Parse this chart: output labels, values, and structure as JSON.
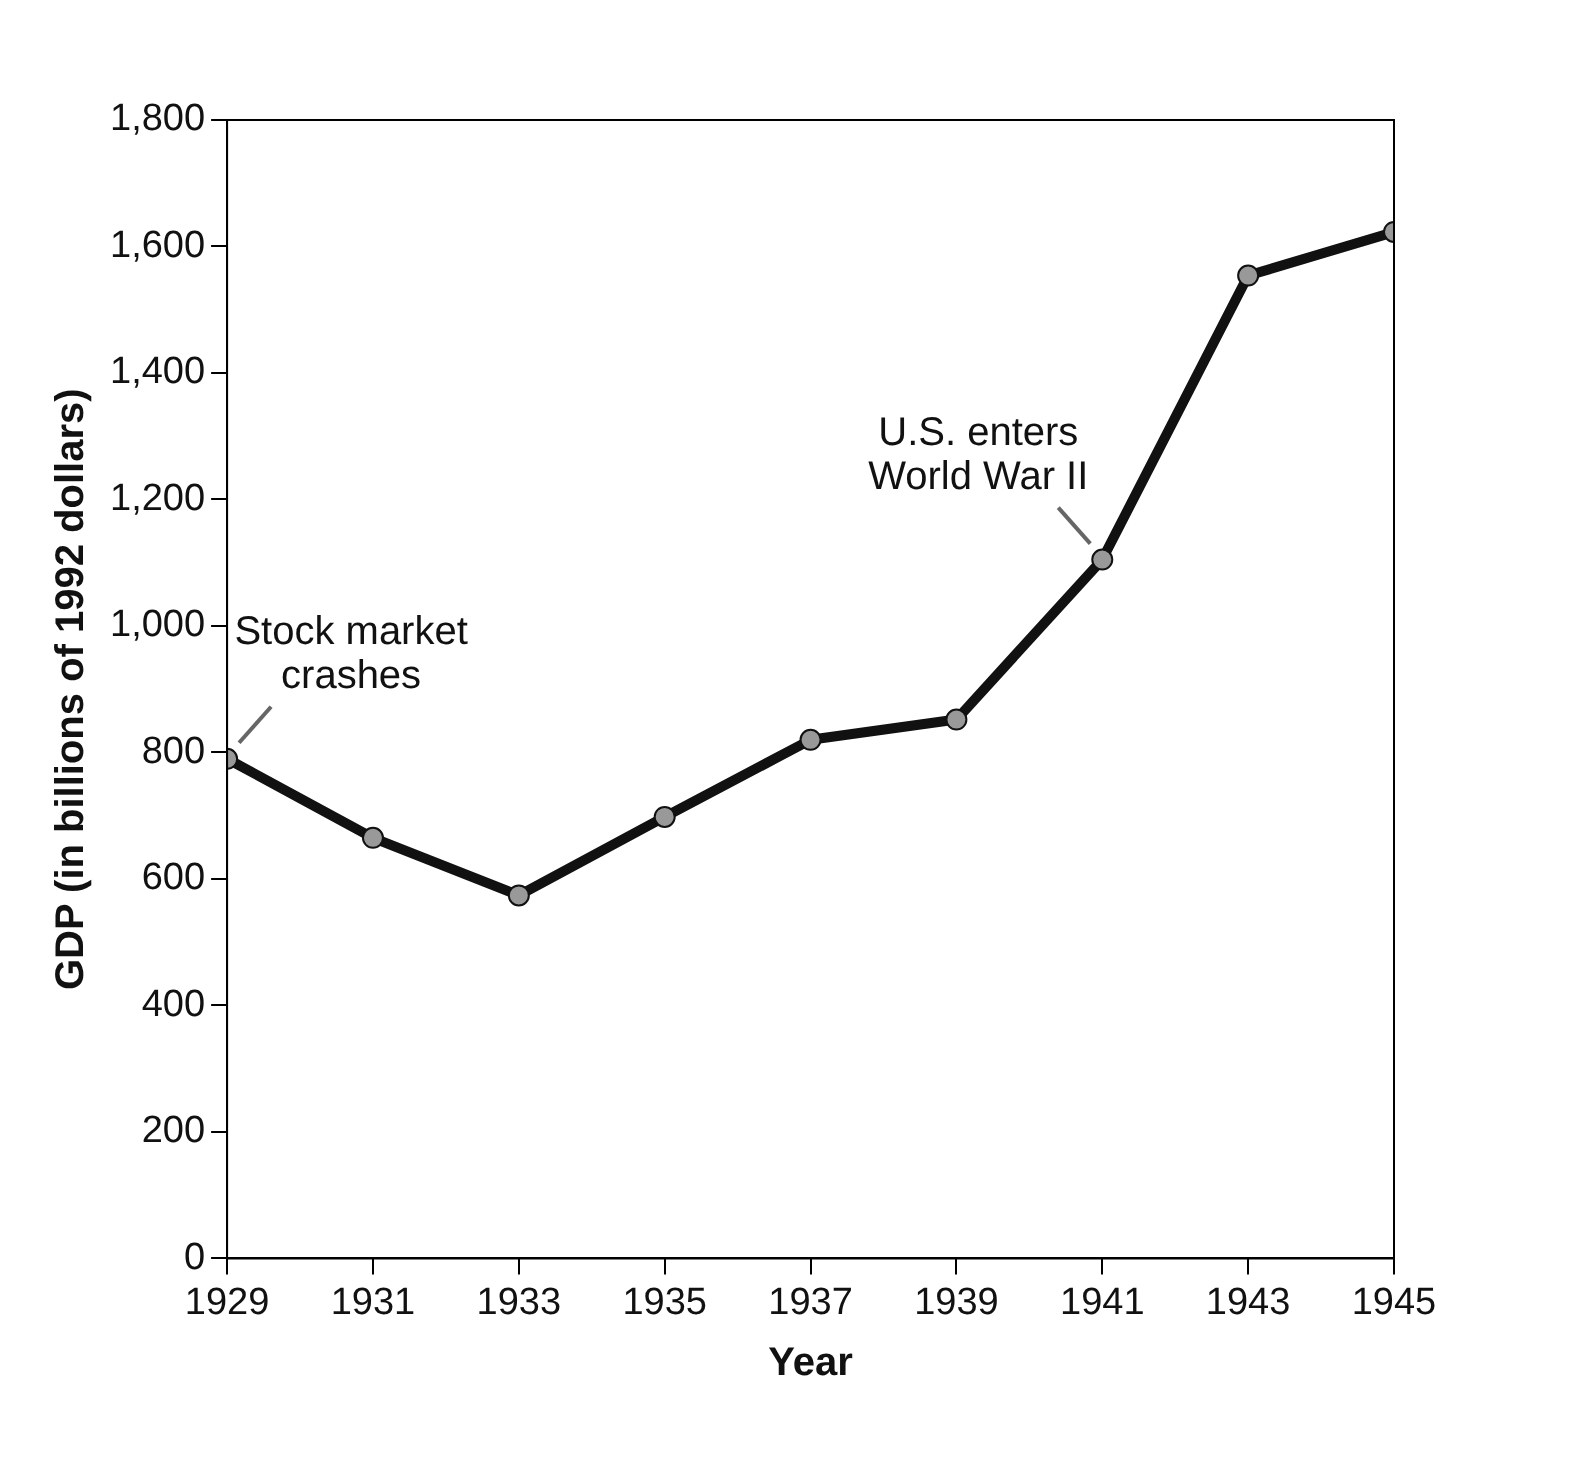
{
  "chart_data": {
    "type": "line",
    "xlabel": "Year",
    "ylabel": "GDP (in billions of 1992 dollars)",
    "x": [
      1929,
      1931,
      1933,
      1935,
      1937,
      1939,
      1941,
      1943,
      1945
    ],
    "series": [
      {
        "color": "#111111",
        "values": [
          790,
          665,
          574,
          698,
          820,
          852,
          1105,
          1554,
          1623
        ]
      }
    ],
    "xlim": [
      1929,
      1945
    ],
    "xticks": [
      1929,
      1931,
      1933,
      1935,
      1937,
      1939,
      1941,
      1943,
      1945
    ],
    "ylim": [
      0,
      1800
    ],
    "yticks": [
      {
        "value": 0,
        "label": "0"
      },
      {
        "value": 200,
        "label": "200"
      },
      {
        "value": 400,
        "label": "400"
      },
      {
        "value": 600,
        "label": "600"
      },
      {
        "value": 800,
        "label": "800"
      },
      {
        "value": 1000,
        "label": "1,000"
      },
      {
        "value": 1200,
        "label": "1,200"
      },
      {
        "value": 1400,
        "label": "1,400"
      },
      {
        "value": 1600,
        "label": "1,600"
      },
      {
        "value": 1800,
        "label": "1,800"
      }
    ],
    "grid": false,
    "legend": false,
    "marker": "circle",
    "line_style": "solid",
    "annotations": [
      {
        "text": "Stock market\ncrashes",
        "x": 1929,
        "y": 790
      },
      {
        "text": "U.S. enters\nWorld War II",
        "x": 1941,
        "y": 1105
      }
    ]
  }
}
